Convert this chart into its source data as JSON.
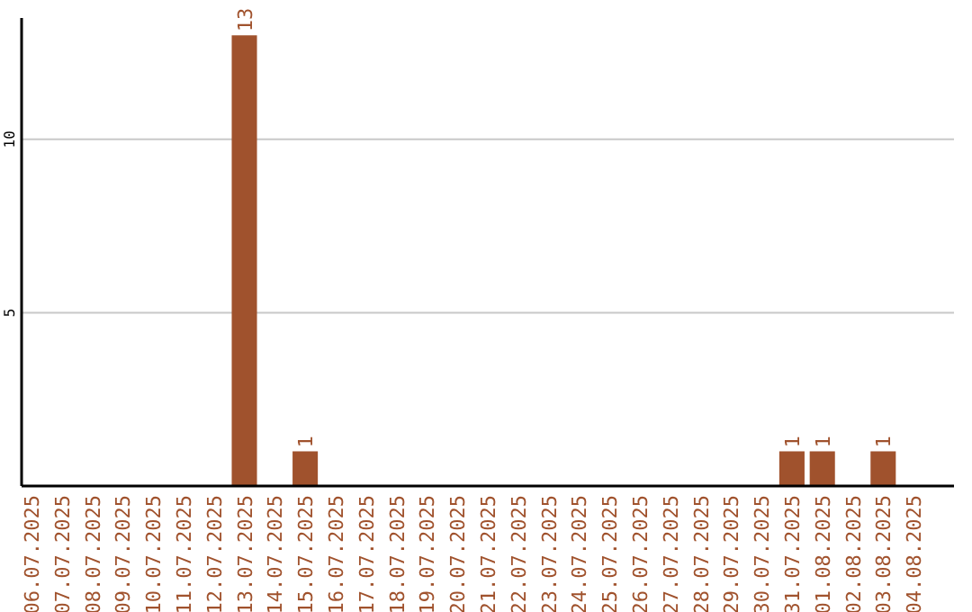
{
  "chart_data": {
    "type": "bar",
    "categories": [
      "06.07.2025",
      "07.07.2025",
      "08.07.2025",
      "09.07.2025",
      "10.07.2025",
      "11.07.2025",
      "12.07.2025",
      "13.07.2025",
      "14.07.2025",
      "15.07.2025",
      "16.07.2025",
      "17.07.2025",
      "18.07.2025",
      "19.07.2025",
      "20.07.2025",
      "21.07.2025",
      "22.07.2025",
      "23.07.2025",
      "24.07.2025",
      "25.07.2025",
      "26.07.2025",
      "27.07.2025",
      "28.07.2025",
      "29.07.2025",
      "30.07.2025",
      "31.07.2025",
      "01.08.2025",
      "02.08.2025",
      "03.08.2025",
      "04.08.2025"
    ],
    "values": [
      0,
      0,
      0,
      0,
      0,
      0,
      0,
      13,
      0,
      1,
      0,
      0,
      0,
      0,
      0,
      0,
      0,
      0,
      0,
      0,
      0,
      0,
      0,
      0,
      0,
      1,
      1,
      0,
      1,
      0
    ],
    "value_labels": [
      null,
      null,
      null,
      null,
      null,
      null,
      null,
      "13",
      null,
      "1",
      null,
      null,
      null,
      null,
      null,
      null,
      null,
      null,
      null,
      null,
      null,
      null,
      null,
      null,
      null,
      "1",
      "1",
      null,
      "1",
      null
    ],
    "color": "#a0522d",
    "ylim": [
      0,
      13.5
    ],
    "yticks": [
      5,
      10
    ],
    "grid": "y"
  }
}
